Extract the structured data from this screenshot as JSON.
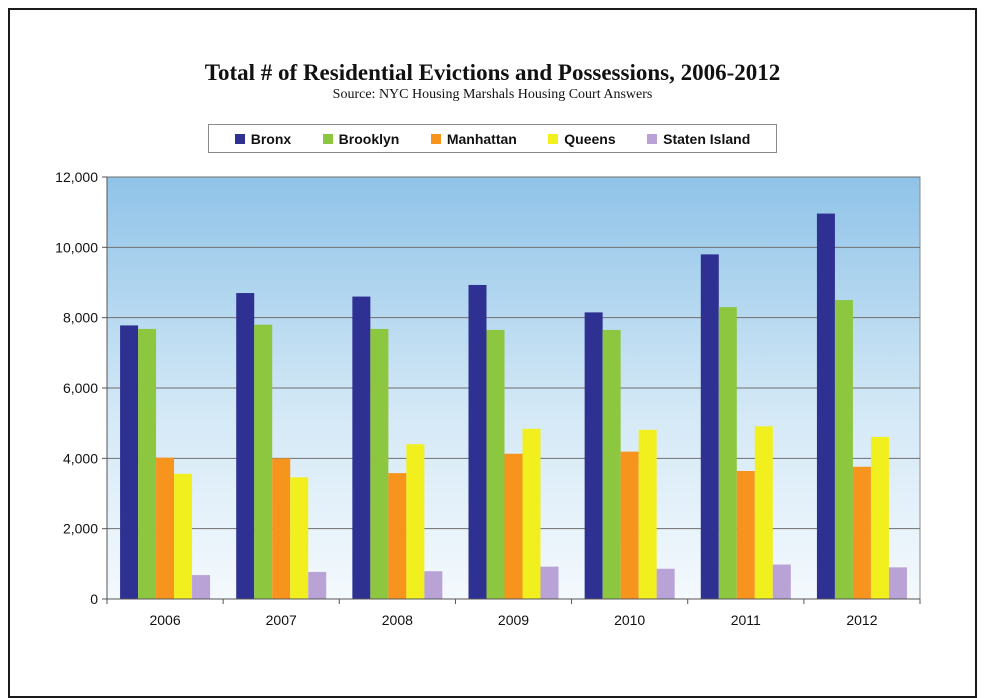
{
  "chart_data": {
    "type": "bar",
    "title": "Total # of Residential Evictions and Possessions, 2006-2012",
    "subtitle": "Source: NYC Housing Marshals Housing Court Answers",
    "xlabel": "",
    "ylabel": "",
    "ylim": [
      0,
      12000
    ],
    "yticks": [
      "0",
      "2,000",
      "4,000",
      "6,000",
      "8,000",
      "10,000",
      "12,000"
    ],
    "ytick_values": [
      0,
      2000,
      4000,
      6000,
      8000,
      10000,
      12000
    ],
    "grid": true,
    "legend_position": "top",
    "categories": [
      "2006",
      "2007",
      "2008",
      "2009",
      "2010",
      "2011",
      "2012"
    ],
    "series": [
      {
        "name": "Bronx",
        "color": "#2e3192",
        "values": [
          7780,
          8700,
          8600,
          8930,
          8150,
          9800,
          10960
        ]
      },
      {
        "name": "Brooklyn",
        "color": "#8dc63f",
        "values": [
          7680,
          7800,
          7680,
          7650,
          7650,
          8300,
          8500
        ]
      },
      {
        "name": "Manhattan",
        "color": "#f7941d",
        "values": [
          4020,
          4000,
          3580,
          4130,
          4190,
          3640,
          3760
        ]
      },
      {
        "name": "Queens",
        "color": "#f2ef1e",
        "values": [
          3560,
          3460,
          4400,
          4840,
          4810,
          4910,
          4610
        ]
      },
      {
        "name": "Staten Island",
        "color": "#b9a2d6",
        "values": [
          680,
          770,
          790,
          920,
          860,
          980,
          900
        ]
      }
    ]
  }
}
